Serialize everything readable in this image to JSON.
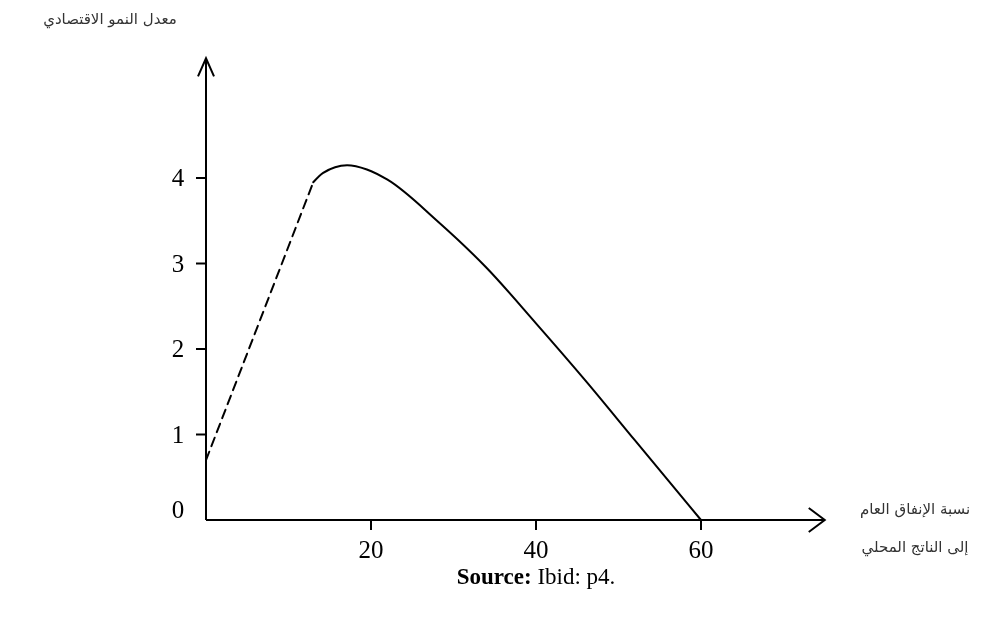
{
  "chart_data": {
    "type": "line",
    "xlabel": "نسبة الإنفاق العام\nإلى الناتج المحلي",
    "ylabel": "معدل النمو الاقتصادي",
    "annotations": [
      "Source: Ibid: p4."
    ],
    "xlim": [
      0,
      75
    ],
    "ylim": [
      0,
      5.4
    ],
    "xticks": [
      20,
      40,
      60
    ],
    "yticks": [
      0,
      1,
      2,
      3,
      4
    ],
    "grid": false,
    "marker": "none",
    "series": [
      {
        "color": "#000000",
        "line_style": "dashed",
        "x": [
          0,
          13
        ],
        "values": [
          0.7,
          3.95
        ]
      },
      {
        "color": "#000000",
        "line_style": "solid",
        "x": [
          13,
          14.2,
          17.1,
          19.5,
          22,
          28,
          34,
          40,
          46,
          52,
          60
        ],
        "values": [
          3.95,
          4.06,
          4.15,
          4.1,
          3.98,
          3.5,
          2.95,
          2.3,
          1.63,
          0.93,
          0
        ]
      }
    ]
  }
}
